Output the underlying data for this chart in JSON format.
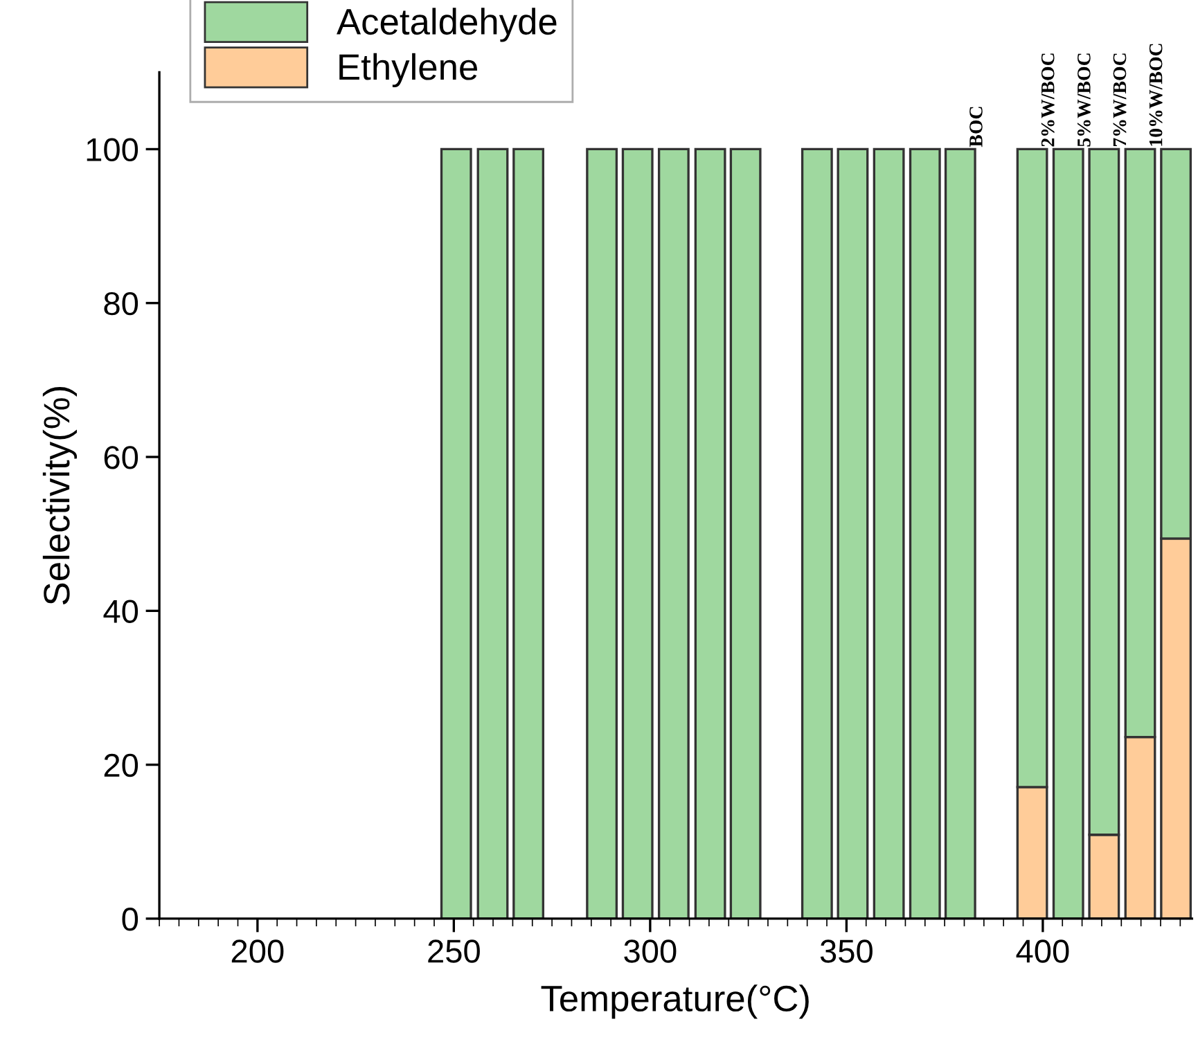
{
  "chart_data": {
    "type": "bar",
    "stacked": true,
    "xlabel": "Temperature(°C)",
    "ylabel": "Selectivity(%)",
    "x": [
      250.6,
      259.9,
      269,
      287.7,
      296.8,
      306,
      315.3,
      324.3,
      342.5,
      351.6,
      360.8,
      370,
      379,
      397.3,
      406.5,
      415.6,
      424.8,
      433.9
    ],
    "series": [
      {
        "name": "Ethylene",
        "color": "#ffcc99",
        "values": [
          0,
          0,
          0,
          0,
          0,
          0,
          0,
          0,
          0,
          0,
          0,
          0,
          0,
          17.1,
          0,
          10.9,
          23.6,
          49.4
        ]
      },
      {
        "name": "Acetaldehyde",
        "color": "#9fd89f",
        "values": [
          100,
          100,
          100,
          100,
          100,
          100,
          100,
          100,
          100,
          100,
          100,
          100,
          100,
          82.9,
          100,
          89.1,
          76.4,
          50.6
        ]
      }
    ],
    "xlim": [
      175,
      438
    ],
    "xticks": [
      200,
      250,
      300,
      350,
      400
    ],
    "ylim": [
      0,
      110
    ],
    "yticks": [
      0,
      20,
      40,
      60,
      80,
      100
    ],
    "annotations": [
      {
        "text": "BOC",
        "x": 379,
        "y": 100
      },
      {
        "text": "2%W/BOC",
        "x": 397.3,
        "y": 100
      },
      {
        "text": "5%W/BOC",
        "x": 406.5,
        "y": 100
      },
      {
        "text": "7%W/BOC",
        "x": 415.6,
        "y": 100
      },
      {
        "text": "10%W/BOC",
        "x": 424.8,
        "y": 100
      }
    ],
    "legend": "top left",
    "grid": false
  }
}
